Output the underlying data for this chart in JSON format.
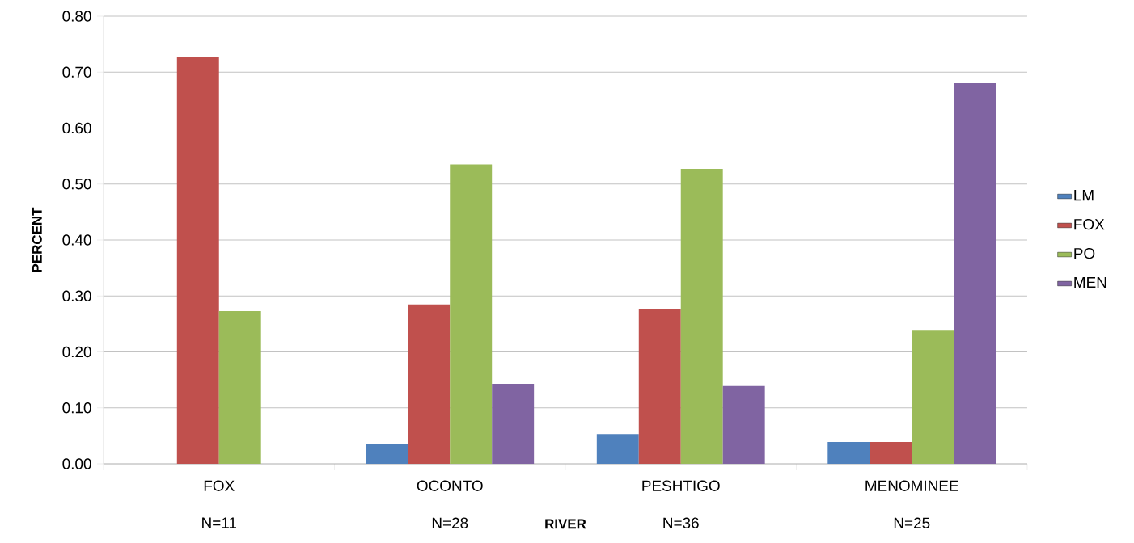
{
  "chart_data": {
    "type": "bar",
    "xlabel": "RIVER",
    "ylabel": "PERCENT",
    "categories": [
      "FOX",
      "OCONTO",
      "PESHTIGO",
      "MENOMINEE"
    ],
    "series": [
      {
        "name": "LM",
        "color": "#4f81bd",
        "values": [
          0,
          0.036,
          0.053,
          0.039
        ]
      },
      {
        "name": "FOX",
        "color": "#c0504d",
        "values": [
          0.727,
          0.285,
          0.277,
          0.039
        ]
      },
      {
        "name": "PO",
        "color": "#9bbb59",
        "values": [
          0.273,
          0.535,
          0.527,
          0.238
        ]
      },
      {
        "name": "MEN",
        "color": "#8064a2",
        "values": [
          0,
          0.143,
          0.139,
          0.68
        ]
      }
    ],
    "ylim": [
      0,
      0.8
    ],
    "yticks": [
      {
        "value": 0,
        "label": "0.00"
      },
      {
        "value": 0.1,
        "label": "0.10"
      },
      {
        "value": 0.2,
        "label": "0.20"
      },
      {
        "value": 0.3,
        "label": "0.30"
      },
      {
        "value": 0.4,
        "label": "0.40"
      },
      {
        "value": 0.5,
        "label": "0.50"
      },
      {
        "value": 0.6,
        "label": "0.60"
      },
      {
        "value": 0.7,
        "label": "0.70"
      },
      {
        "value": 0.8,
        "label": "0.80"
      }
    ],
    "grid": "y",
    "legend": "right",
    "annotations": [
      "N=11",
      "N=28",
      "N=36",
      "N=25"
    ]
  }
}
